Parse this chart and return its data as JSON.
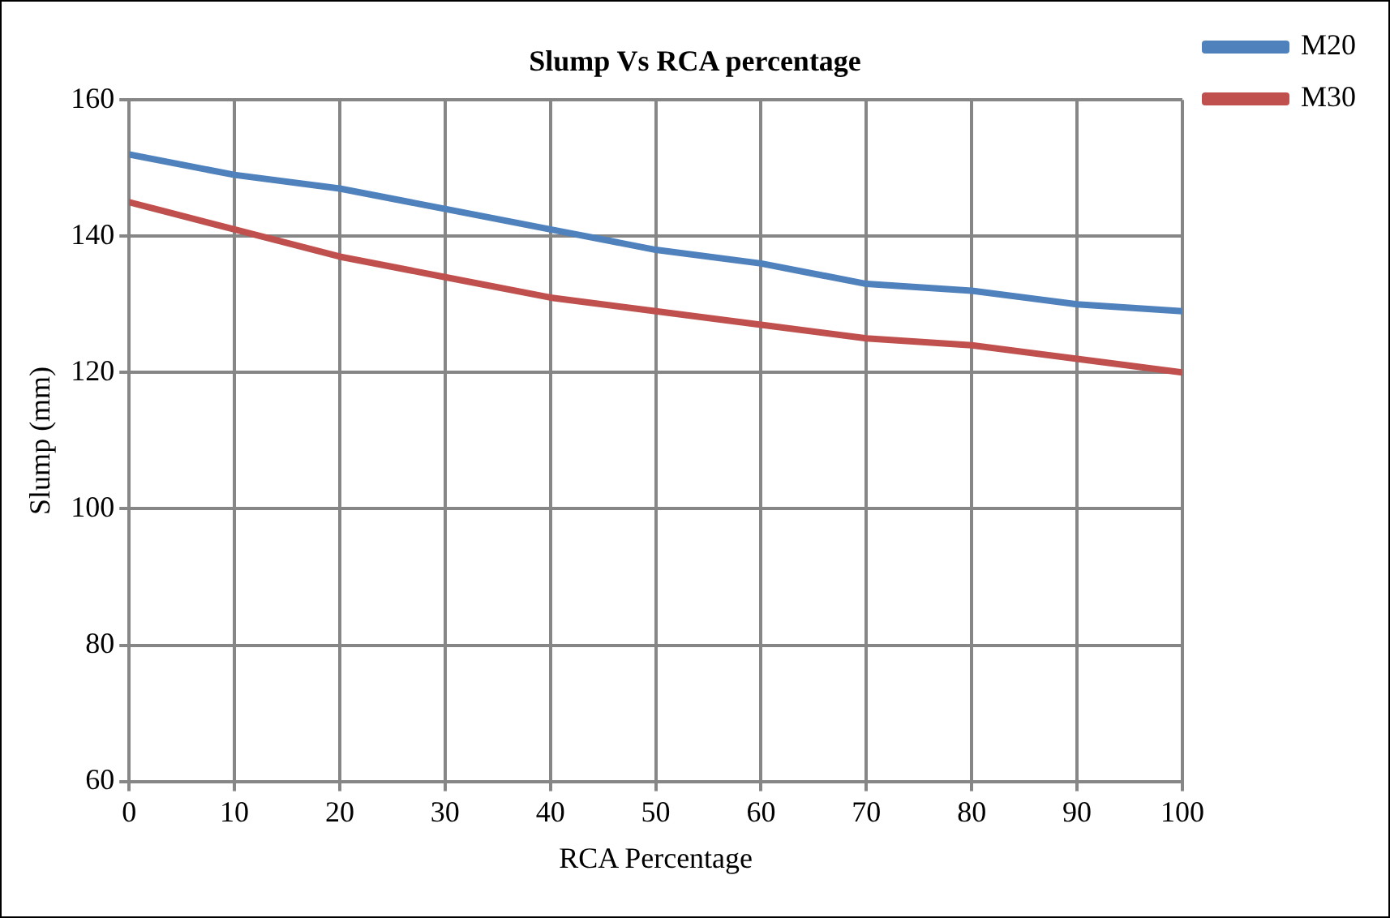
{
  "chart_data": {
    "type": "line",
    "title": "Slump Vs RCA percentage",
    "xlabel": "RCA Percentage",
    "ylabel": "Slump (mm)",
    "x": [
      0,
      10,
      20,
      30,
      40,
      50,
      60,
      70,
      80,
      90,
      100
    ],
    "series": [
      {
        "name": "M20",
        "color": "#4f81bd",
        "values": [
          152,
          149,
          147,
          144,
          141,
          138,
          136,
          133,
          132,
          130,
          129
        ]
      },
      {
        "name": "M30",
        "color": "#c0504d",
        "values": [
          145,
          141,
          137,
          134,
          131,
          129,
          127,
          125,
          124,
          122,
          120
        ]
      }
    ],
    "xlim": [
      0,
      100
    ],
    "xticks": [
      0,
      10,
      20,
      30,
      40,
      50,
      60,
      70,
      80,
      90,
      100
    ],
    "ylim": [
      60,
      160
    ],
    "yticks": [
      60,
      80,
      100,
      120,
      140,
      160
    ],
    "grid": true,
    "legend": "right",
    "marker": "none",
    "line_style": "solid"
  }
}
